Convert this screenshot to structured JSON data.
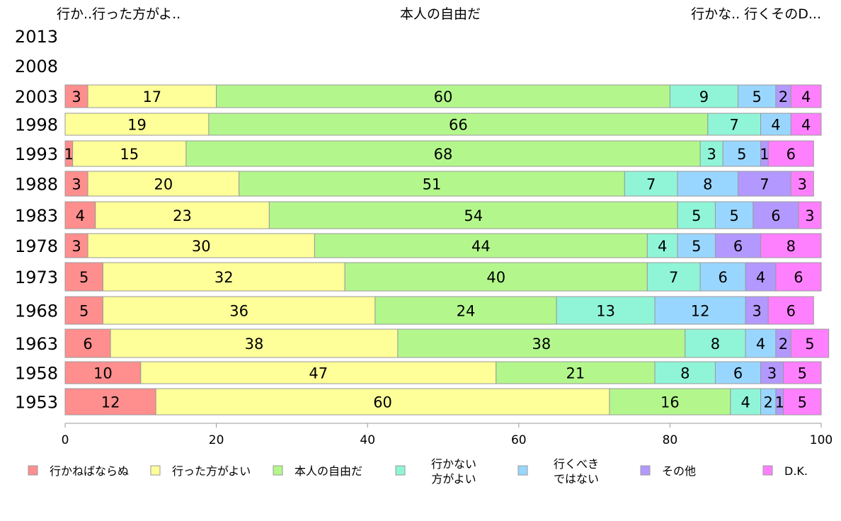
{
  "chart_data": {
    "type": "bar",
    "orientation": "horizontal",
    "stacked": true,
    "top_labels": [
      "行か..行った方がよ..",
      "本人の自由だ",
      "行かな.. 行くそのD..."
    ],
    "categories": [
      "2013",
      "2008",
      "2003",
      "1998",
      "1993",
      "1988",
      "1983",
      "1978",
      "1973",
      "1968",
      "1963",
      "1958",
      "1953"
    ],
    "series": [
      {
        "name": "行かねばならぬ",
        "color": "#ff8e8e",
        "values": [
          null,
          null,
          3,
          0,
          1,
          3,
          4,
          3,
          5,
          5,
          6,
          10,
          12
        ],
        "labels": [
          "",
          "",
          "3",
          "",
          "1",
          "3",
          "4",
          "3",
          "5",
          "5",
          "6",
          "10",
          "12"
        ]
      },
      {
        "name": "行った方がよい",
        "color": "#ffff99",
        "values": [
          null,
          null,
          17,
          19,
          15,
          20,
          23,
          30,
          32,
          36,
          38,
          47,
          60
        ],
        "labels": [
          "",
          "",
          "17",
          "19",
          "15",
          "20",
          "23",
          "30",
          "32",
          "36",
          "38",
          "47",
          "60"
        ]
      },
      {
        "name": "本人の自由だ",
        "color": "#b3f78c",
        "values": [
          null,
          null,
          60,
          66,
          68,
          51,
          54,
          44,
          40,
          24,
          38,
          21,
          16
        ],
        "labels": [
          "",
          "",
          "60",
          "66",
          "68",
          "51",
          "54",
          "44",
          "40",
          "24",
          "38",
          "21",
          "16"
        ]
      },
      {
        "name": "行かない方がよい",
        "legend_lines": [
          "行かない",
          "方がよい"
        ],
        "color": "#8ff5d6",
        "values": [
          null,
          null,
          9,
          7,
          3,
          7,
          5,
          4,
          7,
          13,
          8,
          8,
          4
        ],
        "labels": [
          "",
          "",
          "9",
          "7",
          "3",
          "7",
          "5",
          "4",
          "7",
          "13",
          "8",
          "8",
          "4"
        ]
      },
      {
        "name": "行くべきではない",
        "legend_lines": [
          "行くべき",
          "ではない"
        ],
        "color": "#99d6ff",
        "values": [
          null,
          null,
          5,
          4,
          5,
          8,
          5,
          5,
          6,
          12,
          4,
          6,
          2
        ],
        "labels": [
          "",
          "",
          "5",
          "4",
          "5",
          "8",
          "5",
          "5",
          "6",
          "12",
          "4",
          "6",
          "2"
        ]
      },
      {
        "name": "その他",
        "color": "#b399ff",
        "values": [
          null,
          null,
          2,
          0,
          1,
          7,
          6,
          6,
          4,
          3,
          2,
          3,
          1
        ],
        "labels": [
          "",
          "",
          "2",
          "",
          "1",
          "7",
          "6",
          "6",
          "4",
          "3",
          "2",
          "3",
          "1"
        ]
      },
      {
        "name": "D.K.",
        "color": "#ff80ff",
        "values": [
          null,
          null,
          4,
          4,
          6,
          3,
          3,
          8,
          6,
          6,
          5,
          5,
          5
        ],
        "labels": [
          "",
          "",
          "4",
          "4",
          "6",
          "3",
          "3",
          "8",
          "6",
          "6",
          "5",
          "5",
          "5"
        ]
      }
    ],
    "xlim": [
      0,
      100
    ],
    "xticks": [
      "0",
      "20",
      "40",
      "60",
      "80",
      "100"
    ],
    "title": "",
    "xlabel": "",
    "ylabel": "",
    "grid": false,
    "legend_position": "bottom"
  }
}
